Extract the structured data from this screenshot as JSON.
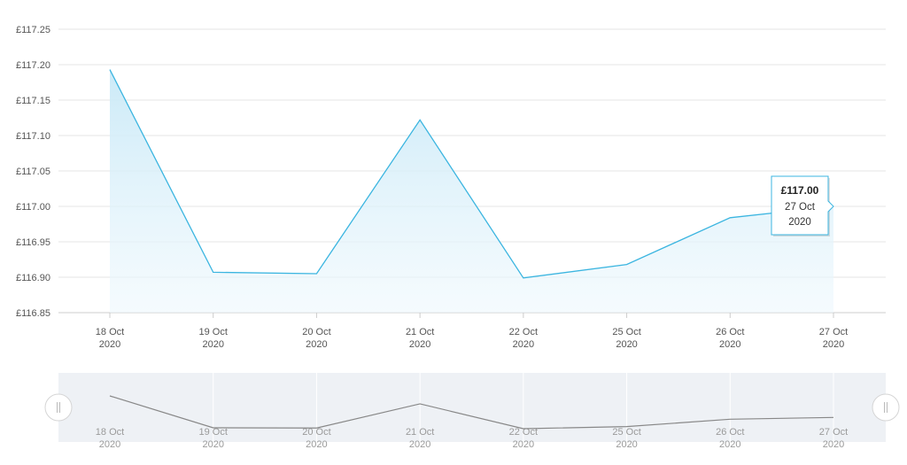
{
  "chart_data": {
    "type": "area",
    "x": [
      "18 Oct 2020",
      "19 Oct 2020",
      "20 Oct 2020",
      "21 Oct 2020",
      "22 Oct 2020",
      "25 Oct 2020",
      "26 Oct 2020",
      "27 Oct 2020"
    ],
    "x_tick_labels": [
      [
        "18 Oct",
        "2020"
      ],
      [
        "19 Oct",
        "2020"
      ],
      [
        "20 Oct",
        "2020"
      ],
      [
        "21 Oct",
        "2020"
      ],
      [
        "22 Oct",
        "2020"
      ],
      [
        "25 Oct",
        "2020"
      ],
      [
        "26 Oct",
        "2020"
      ],
      [
        "27 Oct",
        "2020"
      ]
    ],
    "values": [
      117.193,
      116.907,
      116.905,
      117.122,
      116.899,
      116.918,
      116.984,
      117.0
    ],
    "y_ticks": [
      "£116.85",
      "£116.90",
      "£116.95",
      "£117.00",
      "£117.05",
      "£117.10",
      "£117.15",
      "£117.20",
      "£117.25"
    ],
    "ylim": [
      116.85,
      117.25
    ],
    "grid": true,
    "colors": {
      "line": "#3bb5e0",
      "fill": "#d9f0fa",
      "grid": "#e6e6e6",
      "navigator_bg": "#eef1f5",
      "navigator_line": "#888888"
    },
    "tooltip": {
      "price": "£117.00",
      "date_line1": "27 Oct",
      "date_line2": "2020",
      "index": 7
    },
    "navigator": {
      "enabled": true,
      "handle_icon": "grip-lines-icon"
    }
  }
}
